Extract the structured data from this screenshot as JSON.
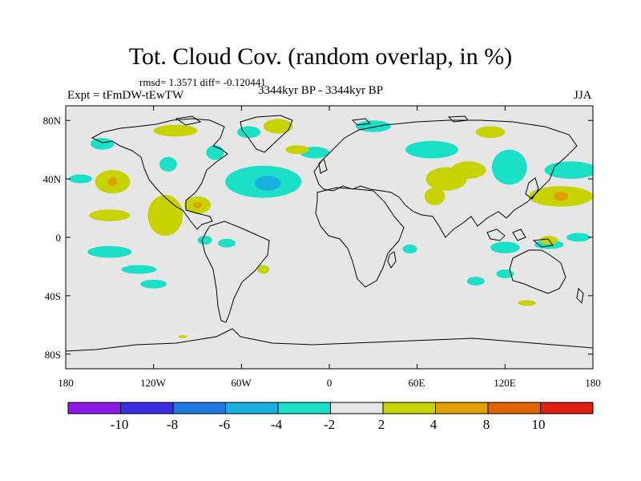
{
  "title": "Tot. Cloud Cov. (random overlap, in %)",
  "stats": "rmsd= 1.3571  diff= -0.120441",
  "experiment": "Expt = tFmDW-tEwTW",
  "period": "3344kyr BP - 3344kyr BP",
  "season": "JJA",
  "map": {
    "lat_ticks": [
      {
        "lat": 80,
        "label": "80N"
      },
      {
        "lat": 40,
        "label": "40N"
      },
      {
        "lat": 0,
        "label": "0"
      },
      {
        "lat": -40,
        "label": "40S"
      },
      {
        "lat": -80,
        "label": "80S"
      }
    ],
    "lon_ticks": [
      {
        "lon": -180,
        "label": "180"
      },
      {
        "lon": -120,
        "label": "120W"
      },
      {
        "lon": -60,
        "label": "60W"
      },
      {
        "lon": 0,
        "label": "0"
      },
      {
        "lon": 60,
        "label": "60E"
      },
      {
        "lon": 120,
        "label": "120E"
      },
      {
        "lon": 180,
        "label": "180"
      }
    ],
    "background_color": "#e6e6e6"
  },
  "colorbar": {
    "colors": [
      "#8c1ae6",
      "#3a2ee0",
      "#1f78e0",
      "#19b0e0",
      "#1ae0c8",
      "#e6e6e6",
      "#c8d200",
      "#e0a000",
      "#e06400",
      "#e01e14"
    ],
    "labels": [
      "-10",
      "-8",
      "-6",
      "-4",
      "-2",
      "2",
      "4",
      "8",
      "10"
    ]
  },
  "anomaly_regions": [
    {
      "name": "north-atlantic-negative",
      "level": -6,
      "lon": -42,
      "lat": 37,
      "rlon": 9,
      "rlat": 5
    },
    {
      "name": "north-atlantic-negative-outer",
      "level": -4,
      "lon": -42,
      "lat": 37,
      "rlon": 16,
      "rlat": 8
    },
    {
      "name": "north-atlantic-negative-halo",
      "level": -3,
      "lon": -45,
      "lat": 38,
      "rlon": 26,
      "rlat": 11
    },
    {
      "name": "nw-pacific-positive",
      "level": 3,
      "lon": 158,
      "lat": 28,
      "rlon": 22,
      "rlat": 7
    },
    {
      "name": "nw-pacific-positive-core",
      "level": 5,
      "lon": 158,
      "lat": 28,
      "rlon": 5,
      "rlat": 3
    },
    {
      "name": "ne-pacific-positive",
      "level": 3,
      "lon": -148,
      "lat": 38,
      "rlon": 12,
      "rlat": 8
    },
    {
      "name": "ne-pacific-positive-core",
      "level": 5,
      "lon": -148,
      "lat": 38,
      "rlon": 3,
      "rlat": 3
    },
    {
      "name": "mexico-positive",
      "level": 3,
      "lon": -112,
      "lat": 15,
      "rlon": 12,
      "rlat": 14
    },
    {
      "name": "caribbean-positive",
      "level": 3,
      "lon": -90,
      "lat": 22,
      "rlon": 9,
      "rlat": 6
    },
    {
      "name": "caribbean-positive-core",
      "level": 5,
      "lon": -90,
      "lat": 22,
      "rlon": 3,
      "rlat": 2
    },
    {
      "name": "central-asia-positive",
      "level": 3,
      "lon": 80,
      "lat": 40,
      "rlon": 14,
      "rlat": 8
    },
    {
      "name": "central-asia-positive-b",
      "level": 3,
      "lon": 95,
      "lat": 46,
      "rlon": 12,
      "rlat": 6
    },
    {
      "name": "south-asia-positive",
      "level": 3,
      "lon": 72,
      "lat": 28,
      "rlon": 7,
      "rlat": 6
    },
    {
      "name": "siberia-negative",
      "level": -3,
      "lon": 70,
      "lat": 60,
      "rlon": 18,
      "rlat": 6
    },
    {
      "name": "east-asia-negative",
      "level": -3,
      "lon": 123,
      "lat": 48,
      "rlon": 12,
      "rlat": 12
    },
    {
      "name": "nw-pacific-negative",
      "level": -3,
      "lon": 165,
      "lat": 46,
      "rlon": 18,
      "rlat": 6
    },
    {
      "name": "arctic-canada-positive",
      "level": 3,
      "lon": -105,
      "lat": 73,
      "rlon": 15,
      "rlat": 4
    },
    {
      "name": "arctic-greenland-positive",
      "level": 3,
      "lon": -35,
      "lat": 76,
      "rlon": 10,
      "rlat": 5
    },
    {
      "name": "arctic-greenland-negative",
      "level": -3,
      "lon": -55,
      "lat": 72,
      "rlon": 8,
      "rlat": 4
    },
    {
      "name": "alaska-negative",
      "level": -3,
      "lon": -155,
      "lat": 64,
      "rlon": 8,
      "rlat": 4
    },
    {
      "name": "hudson-negative",
      "level": -3,
      "lon": -78,
      "lat": 58,
      "rlon": 6,
      "rlat": 5
    },
    {
      "name": "canada-negative",
      "level": -3,
      "lon": -110,
      "lat": 50,
      "rlon": 6,
      "rlat": 5
    },
    {
      "name": "n-atlantic-negative",
      "level": -3,
      "lon": -10,
      "lat": 58,
      "rlon": 10,
      "rlat": 4
    },
    {
      "name": "n-atlantic-positive",
      "level": 3,
      "lon": -22,
      "lat": 60,
      "rlon": 8,
      "rlat": 3
    },
    {
      "name": "arctic-east-negative",
      "level": -3,
      "lon": 30,
      "lat": 76,
      "rlon": 12,
      "rlat": 4
    },
    {
      "name": "arctic-siberia-positive",
      "level": 3,
      "lon": 110,
      "lat": 72,
      "rlon": 10,
      "rlat": 4
    },
    {
      "name": "e-pacific-positive",
      "level": 3,
      "lon": -150,
      "lat": 15,
      "rlon": 14,
      "rlat": 4
    },
    {
      "name": "e-pacific-negative",
      "level": -3,
      "lon": -170,
      "lat": 40,
      "rlon": 8,
      "rlat": 3
    },
    {
      "name": "sw-pacific-negative",
      "level": -3,
      "lon": -150,
      "lat": -10,
      "rlon": 15,
      "rlat": 4
    },
    {
      "name": "tropical-pacific-negative",
      "level": -3,
      "lon": -130,
      "lat": -22,
      "rlon": 12,
      "rlat": 3
    },
    {
      "name": "s-pacific-negative",
      "level": -3,
      "lon": -120,
      "lat": -32,
      "rlon": 9,
      "rlat": 3
    },
    {
      "name": "tropical-atlantic-negative",
      "level": -3,
      "lon": -70,
      "lat": -4,
      "rlon": 6,
      "rlat": 3
    },
    {
      "name": "s-atlantic-positive",
      "level": 3,
      "lon": -45,
      "lat": -22,
      "rlon": 4,
      "rlat": 3
    },
    {
      "name": "indonesia-negative",
      "level": -3,
      "lon": 120,
      "lat": -7,
      "rlon": 10,
      "rlat": 4
    },
    {
      "name": "w-pacific-negative",
      "level": -3,
      "lon": 150,
      "lat": -5,
      "rlon": 10,
      "rlat": 3
    },
    {
      "name": "w-pacific-negative-b",
      "level": -3,
      "lon": 170,
      "lat": 0,
      "rlon": 8,
      "rlat": 3
    },
    {
      "name": "australia-positive",
      "level": 3,
      "lon": 150,
      "lat": -2,
      "rlon": 6,
      "rlat": 3
    },
    {
      "name": "indian-ocean-negative",
      "level": -3,
      "lon": 55,
      "lat": -8,
      "rlon": 5,
      "rlat": 3
    },
    {
      "name": "s-indian-negative",
      "level": -3,
      "lon": 100,
      "lat": -30,
      "rlon": 6,
      "rlat": 3
    },
    {
      "name": "s-indian-negative-b",
      "level": -3,
      "lon": 120,
      "lat": -25,
      "rlon": 6,
      "rlat": 3
    },
    {
      "name": "australia-south-positive",
      "level": 3,
      "lon": 135,
      "lat": -45,
      "rlon": 6,
      "rlat": 2
    },
    {
      "name": "e-pacific-tropical-negative",
      "level": -3,
      "lon": -85,
      "lat": -2,
      "rlon": 5,
      "rlat": 3
    },
    {
      "name": "antarctic-positive",
      "level": 3,
      "lon": -100,
      "lat": -68,
      "rlon": 3,
      "rlat": 1
    }
  ]
}
